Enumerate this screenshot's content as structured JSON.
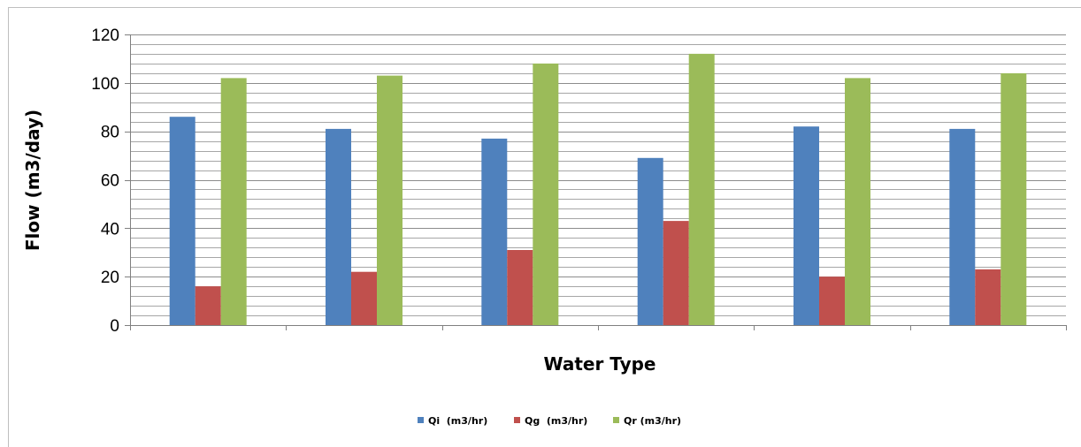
{
  "chart_data": {
    "type": "bar",
    "title": "",
    "xlabel": "Water Type",
    "ylabel": "Flow (m3/day)",
    "categories": [
      "",
      "",
      "",
      "",
      "",
      ""
    ],
    "ylim": [
      0,
      120
    ],
    "yticks": [
      0,
      20,
      40,
      60,
      80,
      100,
      120
    ],
    "minor_gridline_step": 4,
    "grid": true,
    "legend_position": "bottom",
    "series": [
      {
        "name": "Qi  (m3/hr)",
        "color": "#4F81BD",
        "values": [
          86,
          81,
          77,
          69,
          82,
          81
        ]
      },
      {
        "name": "Qg  (m3/hr)",
        "color": "#C0504D",
        "values": [
          16,
          22,
          31,
          43,
          20,
          23
        ]
      },
      {
        "name": "Qr (m3/hr)",
        "color": "#9BBB59",
        "values": [
          102,
          103,
          108,
          112,
          102,
          104
        ]
      }
    ]
  }
}
